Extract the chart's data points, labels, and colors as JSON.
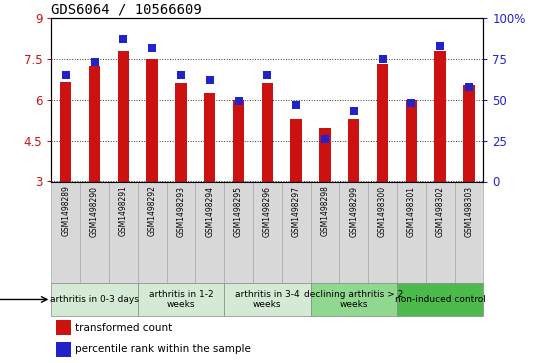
{
  "title": "GDS6064 / 10566609",
  "samples": [
    "GSM1498289",
    "GSM1498290",
    "GSM1498291",
    "GSM1498292",
    "GSM1498293",
    "GSM1498294",
    "GSM1498295",
    "GSM1498296",
    "GSM1498297",
    "GSM1498298",
    "GSM1498299",
    "GSM1498300",
    "GSM1498301",
    "GSM1498302",
    "GSM1498303"
  ],
  "transformed_count": [
    6.65,
    7.25,
    7.8,
    7.5,
    6.6,
    6.25,
    6.0,
    6.6,
    5.3,
    4.97,
    5.3,
    7.3,
    6.0,
    7.8,
    6.55
  ],
  "percentile_rank": [
    65,
    73,
    87,
    82,
    65,
    62,
    49,
    65,
    47,
    26,
    43,
    75,
    48,
    83,
    58
  ],
  "groups": [
    {
      "label": "arthritis in 0-3 days",
      "start": 0,
      "end": 3,
      "color": "#d4ead4"
    },
    {
      "label": "arthritis in 1-2\nweeks",
      "start": 3,
      "end": 6,
      "color": "#d4ead4"
    },
    {
      "label": "arthritis in 3-4\nweeks",
      "start": 6,
      "end": 9,
      "color": "#d4ead4"
    },
    {
      "label": "declining arthritis > 2\nweeks",
      "start": 9,
      "end": 12,
      "color": "#90d890"
    },
    {
      "label": "non-induced control",
      "start": 12,
      "end": 15,
      "color": "#4cbb4c"
    }
  ],
  "ylim_left": [
    3,
    9
  ],
  "ylim_right": [
    0,
    100
  ],
  "yticks_left": [
    3,
    4.5,
    6,
    7.5,
    9
  ],
  "ytick_labels_left": [
    "3",
    "4.5",
    "6",
    "7.5",
    "9"
  ],
  "yticks_right": [
    0,
    25,
    50,
    75,
    100
  ],
  "ytick_labels_right": [
    "0",
    "25",
    "50",
    "75",
    "100%"
  ],
  "bar_color": "#cc1111",
  "dot_color": "#2222cc",
  "bar_width": 0.4,
  "dot_size": 28,
  "label_box_color": "#d8d8d8",
  "label_fontsize": 5.5,
  "group_fontsize": 6.5,
  "title_fontsize": 10,
  "axis_fontsize": 8.5
}
